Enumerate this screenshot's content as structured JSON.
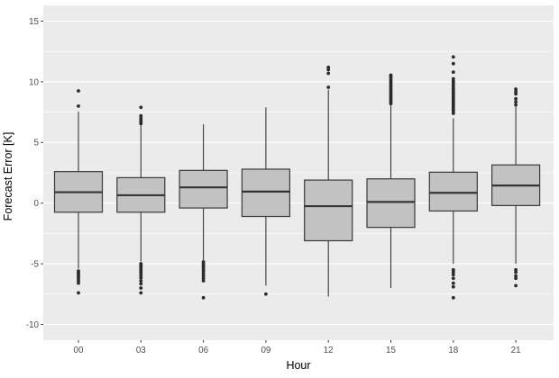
{
  "chart_data": {
    "type": "boxplot",
    "title": "",
    "xlabel": "Hour",
    "ylabel": "Forecast Error [K]",
    "categories": [
      "00",
      "03",
      "06",
      "09",
      "12",
      "15",
      "18",
      "21"
    ],
    "y_ticks": [
      -10,
      -5,
      0,
      5,
      10,
      15
    ],
    "y_minor_ticks": [
      -7.5,
      -2.5,
      2.5,
      7.5,
      12.5
    ],
    "ylim": [
      -11.3,
      16.3
    ],
    "grid": "white major and minor horizontal gridlines on gray panel",
    "legend": "none",
    "series": [
      {
        "hour": "00",
        "whisker_low": -5.4,
        "q1": -0.75,
        "median": 0.9,
        "q3": 2.6,
        "whisker_high": 7.55,
        "outliers_high": [
          8.0,
          9.25
        ],
        "outliers_low": [
          -5.6,
          -5.75,
          -5.9,
          -6.05,
          -6.2,
          -6.4,
          -6.6,
          -7.4
        ]
      },
      {
        "hour": "03",
        "whisker_low": -4.8,
        "q1": -0.75,
        "median": 0.65,
        "q3": 2.1,
        "whisker_high": 6.4,
        "outliers_high": [
          6.55,
          6.7,
          6.85,
          7.0,
          7.2,
          7.9
        ],
        "outliers_low": [
          -5.0,
          -5.15,
          -5.3,
          -5.45,
          -5.6,
          -5.75,
          -5.95,
          -6.15,
          -6.4,
          -6.65,
          -7.0,
          -7.4
        ]
      },
      {
        "hour": "06",
        "whisker_low": -4.7,
        "q1": -0.4,
        "median": 1.3,
        "q3": 2.7,
        "whisker_high": 6.5,
        "outliers_high": [],
        "outliers_low": [
          -4.85,
          -5.0,
          -5.15,
          -5.3,
          -5.45,
          -5.6,
          -5.8,
          -6.0,
          -6.2,
          -6.4,
          -7.8
        ]
      },
      {
        "hour": "09",
        "whisker_low": -6.8,
        "q1": -1.1,
        "median": 0.95,
        "q3": 2.8,
        "whisker_high": 7.9,
        "outliers_high": [],
        "outliers_low": [
          -7.5
        ]
      },
      {
        "hour": "12",
        "whisker_low": -7.7,
        "q1": -3.1,
        "median": -0.25,
        "q3": 1.9,
        "whisker_high": 9.35,
        "outliers_high": [
          9.55,
          10.7,
          11.0,
          11.2
        ],
        "outliers_low": []
      },
      {
        "hour": "15",
        "whisker_low": -7.0,
        "q1": -2.0,
        "median": 0.1,
        "q3": 2.0,
        "whisker_high": 8.1,
        "outliers_high": [
          8.2,
          8.35,
          8.5,
          8.65,
          8.8,
          8.95,
          9.1,
          9.25,
          9.4,
          9.55,
          9.7,
          9.85,
          10.0,
          10.15,
          10.3,
          10.45,
          10.55
        ],
        "outliers_low": []
      },
      {
        "hour": "18",
        "whisker_low": -5.0,
        "q1": -0.65,
        "median": 0.85,
        "q3": 2.55,
        "whisker_high": 7.0,
        "outliers_high": [
          7.4,
          7.55,
          7.7,
          7.85,
          8.0,
          8.15,
          8.3,
          8.45,
          8.6,
          8.75,
          8.9,
          9.05,
          9.2,
          9.35,
          9.5,
          9.7,
          9.9,
          10.05,
          10.25,
          10.8,
          11.5,
          12.05
        ],
        "outliers_low": [
          -5.5,
          -5.7,
          -5.9,
          -6.2,
          -6.6,
          -6.9,
          -7.8
        ]
      },
      {
        "hour": "21",
        "whisker_low": -5.0,
        "q1": -0.2,
        "median": 1.45,
        "q3": 3.15,
        "whisker_high": 8.0,
        "outliers_high": [
          8.1,
          8.35,
          8.6,
          9.0,
          9.2,
          9.4
        ],
        "outliers_low": [
          -5.5,
          -5.7,
          -6.0,
          -6.2,
          -6.8
        ]
      }
    ],
    "colors": {
      "page_bg": "#FFFFFF",
      "panel_bg": "#EBEBEB",
      "grid": "#FFFFFF",
      "box_fill": "#C2C2C2",
      "box_border": "#3A3A3A",
      "median": "#353535",
      "outlier": "#2B2B2B",
      "tick_mark": "#333333",
      "tick_label": "#4D4D4D",
      "axis_title": "#000000"
    }
  }
}
